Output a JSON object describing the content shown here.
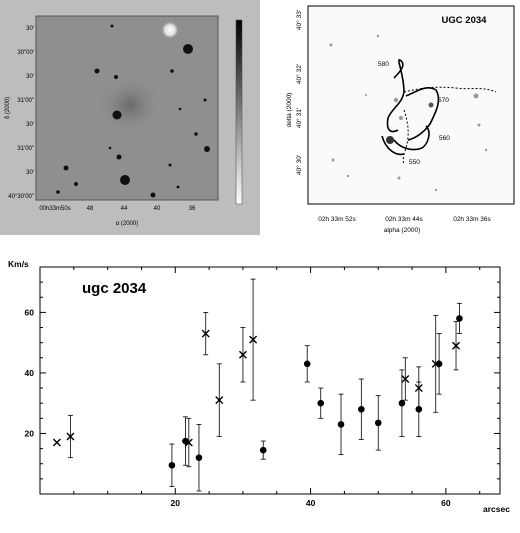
{
  "colors": {
    "sky_bg": "#8f8f8f",
    "panel_bg": "#bdbdbd",
    "ink": "#000000"
  },
  "chart_data": [
    {
      "type": "image",
      "panel": "optical-image",
      "y_ticks": [
        "30'",
        "30\"00'",
        "30'",
        "31'00\"",
        "30'",
        "31'00\"",
        "30'",
        "40°30'00\""
      ],
      "x_ticks": [
        "00h33m50s",
        "48",
        "44",
        "40",
        "36"
      ],
      "xlabel": "α (2000)",
      "ylabel": "δ (2000)",
      "colorbar": "grayscale"
    },
    {
      "type": "image",
      "panel": "velocity-contour-map",
      "title": "UGC 2034",
      "y_ticks": [
        "40° 33'",
        "40° 32'",
        "40° 31'",
        "40° 30'"
      ],
      "x_ticks": [
        "02h 33m 52s",
        "02h 33m 44s",
        "02h 33m 36s"
      ],
      "xlabel": "alpha (2000)",
      "ylabel": "delta (2000)",
      "contour_labels": [
        "580",
        "570",
        "560",
        "550"
      ]
    },
    {
      "type": "scatter",
      "title": "ugc 2034",
      "xlabel": "arcsec",
      "ylabel": "Km/s",
      "xlim": [
        0,
        68
      ],
      "ylim": [
        0,
        75
      ],
      "x_ticks": [
        20,
        40,
        60
      ],
      "y_ticks": [
        20,
        40,
        60
      ],
      "series": [
        {
          "marker": "cross",
          "points": [
            {
              "x": 2.5,
              "y": 17,
              "err": 0
            },
            {
              "x": 4.5,
              "y": 19,
              "err": 7
            },
            {
              "x": 22,
              "y": 17,
              "err": 8
            },
            {
              "x": 24.5,
              "y": 53,
              "err": 7
            },
            {
              "x": 26.5,
              "y": 31,
              "err": 12
            },
            {
              "x": 30,
              "y": 46,
              "err": 9
            },
            {
              "x": 31.5,
              "y": 51,
              "err": 20
            },
            {
              "x": 54,
              "y": 38,
              "err": 7
            },
            {
              "x": 56,
              "y": 35,
              "err": 7
            },
            {
              "x": 58.5,
              "y": 43,
              "err": 16
            },
            {
              "x": 61.5,
              "y": 49,
              "err": 8
            }
          ]
        },
        {
          "marker": "dot",
          "points": [
            {
              "x": 19.5,
              "y": 9.5,
              "err": 7
            },
            {
              "x": 21.5,
              "y": 17.5,
              "err": 8
            },
            {
              "x": 23.5,
              "y": 12,
              "err": 11
            },
            {
              "x": 33,
              "y": 14.5,
              "err": 3
            },
            {
              "x": 39.5,
              "y": 43,
              "err": 6
            },
            {
              "x": 41.5,
              "y": 30,
              "err": 5
            },
            {
              "x": 44.5,
              "y": 23,
              "err": 10
            },
            {
              "x": 47.5,
              "y": 28,
              "err": 10
            },
            {
              "x": 50,
              "y": 23.5,
              "err": 9
            },
            {
              "x": 53.5,
              "y": 30,
              "err": 11
            },
            {
              "x": 56,
              "y": 28,
              "err": 9
            },
            {
              "x": 59,
              "y": 43,
              "err": 10
            },
            {
              "x": 62,
              "y": 58,
              "err": 5
            }
          ]
        }
      ]
    }
  ]
}
